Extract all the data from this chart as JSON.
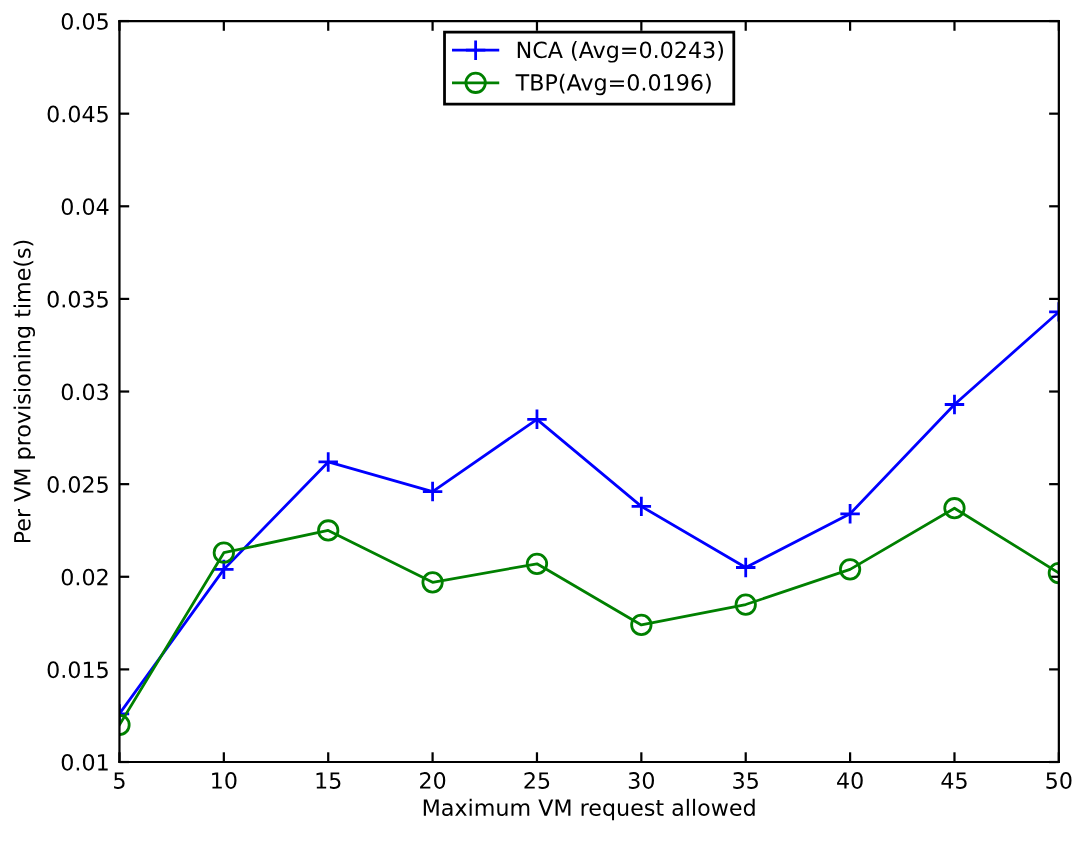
{
  "chart_data": {
    "type": "line",
    "xlabel": "Maximum VM request allowed",
    "ylabel": "Per VM provisioning time(s)",
    "x": [
      5,
      10,
      15,
      20,
      25,
      30,
      35,
      40,
      45,
      50
    ],
    "series": [
      {
        "name": "NCA (Avg=0.0243)",
        "color": "#0000ff",
        "marker": "cross",
        "values": [
          0.0126,
          0.0204,
          0.0262,
          0.0246,
          0.0285,
          0.0238,
          0.0205,
          0.0234,
          0.0293,
          0.0343
        ]
      },
      {
        "name": "TBP(Avg=0.0196)",
        "color": "#008000",
        "marker": "circle",
        "values": [
          0.012,
          0.0213,
          0.0225,
          0.0197,
          0.0207,
          0.0174,
          0.0185,
          0.0204,
          0.0237,
          0.0202
        ]
      }
    ],
    "xlim": [
      5,
      50
    ],
    "ylim": [
      0.01,
      0.05
    ],
    "xticks": [
      5,
      10,
      15,
      20,
      25,
      30,
      35,
      40,
      45,
      50
    ],
    "yticks": [
      0.01,
      0.015,
      0.02,
      0.025,
      0.03,
      0.035,
      0.04,
      0.045,
      0.05
    ],
    "grid": false,
    "legend": "top",
    "line_style": "solid"
  }
}
